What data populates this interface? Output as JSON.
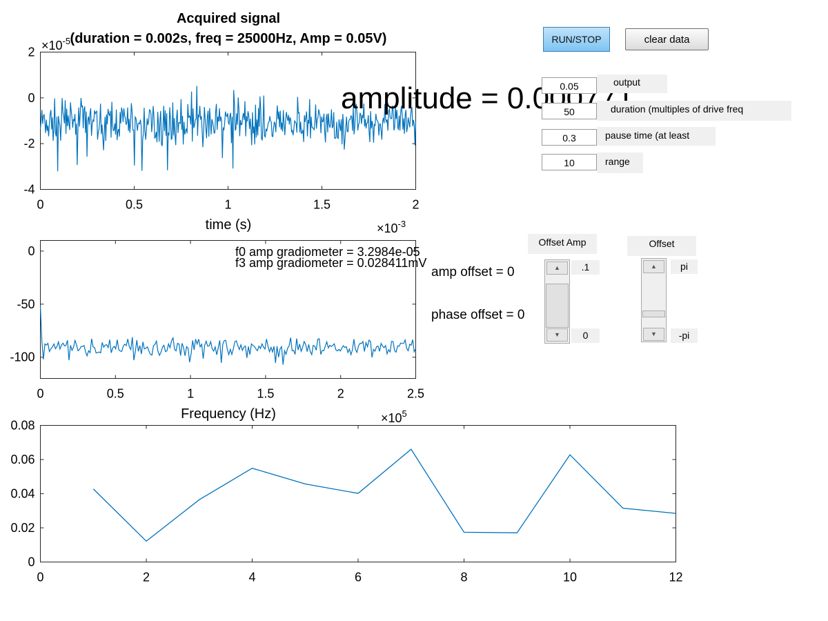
{
  "chart_data": [
    {
      "type": "line",
      "title": "Acquired signal",
      "subtitle": "(duration = 0.002s, freq = 25000Hz, Amp = 0.05V)",
      "xlabel": "time (s)",
      "ylabel": "",
      "x_exponent": "×10",
      "x_exponent_power": "-3",
      "y_exponent": "×10",
      "y_exponent_power": "-5",
      "xlim": [
        0,
        2
      ],
      "ylim": [
        -4,
        2
      ],
      "xticks": [
        "0",
        "0.5",
        "1",
        "1.5",
        "2"
      ],
      "yticks": [
        "-4",
        "-2",
        "0",
        "2"
      ],
      "noise": {
        "n": 500,
        "mean": -1.1,
        "spread": 0.9,
        "seed": 7
      },
      "series": [
        {
          "color": "#0072bd"
        }
      ]
    },
    {
      "type": "line",
      "xlabel": "Frequency (Hz)",
      "ylabel": "",
      "x_exponent": "×10",
      "x_exponent_power": "5",
      "xlim": [
        0,
        2.5
      ],
      "ylim": [
        -120,
        10
      ],
      "xticks": [
        "0",
        "0.5",
        "1",
        "1.5",
        "2",
        "2.5"
      ],
      "yticks": [
        "-100",
        "-50",
        "0"
      ],
      "annotations": [
        "f0 amp gradiometer = 3.2984e-05",
        "f3 amp gradiometer = 0.028411mV"
      ],
      "noise": {
        "n": 250,
        "mean": -91,
        "spread": 4,
        "seed": 13,
        "start": [
          -52,
          -85,
          -102
        ]
      },
      "series": [
        {
          "color": "#0072bd"
        }
      ]
    },
    {
      "type": "line",
      "xlim": [
        0,
        12
      ],
      "ylim": [
        0,
        0.08
      ],
      "xticks": [
        "0",
        "2",
        "4",
        "6",
        "8",
        "10",
        "12"
      ],
      "yticks": [
        "0",
        "0.02",
        "0.04",
        "0.06",
        "0.08"
      ],
      "x": [
        1,
        2,
        3,
        4,
        5,
        6,
        7,
        8,
        9,
        10,
        11,
        12
      ],
      "series": [
        {
          "color": "#0072bd",
          "values": [
            0.0428,
            0.0122,
            0.0365,
            0.0549,
            0.0457,
            0.0402,
            0.066,
            0.0174,
            0.0171,
            0.0628,
            0.0315,
            0.0285
          ]
        }
      ]
    }
  ],
  "overlay": {
    "amplitude_text": "amplitude = 0.000771",
    "amp_offset_text": "amp offset = 0",
    "phase_offset_text": "phase offset = 0"
  },
  "controls": {
    "run_label": "RUN/STOP",
    "clear_label": "clear data",
    "fields": [
      {
        "value": "0.05",
        "label": "output"
      },
      {
        "value": "50",
        "label": "duration (multiples of drive freq"
      },
      {
        "value": "0.3",
        "label": "pause time (at least"
      },
      {
        "value": "10",
        "label": "range"
      }
    ],
    "offset_amp": {
      "label": "Offset Amp",
      "max": ".1",
      "min": "0",
      "position": 0.0
    },
    "offset_phase": {
      "label": "Offset",
      "max": "pi",
      "min": "-pi",
      "position": 0.5
    }
  }
}
